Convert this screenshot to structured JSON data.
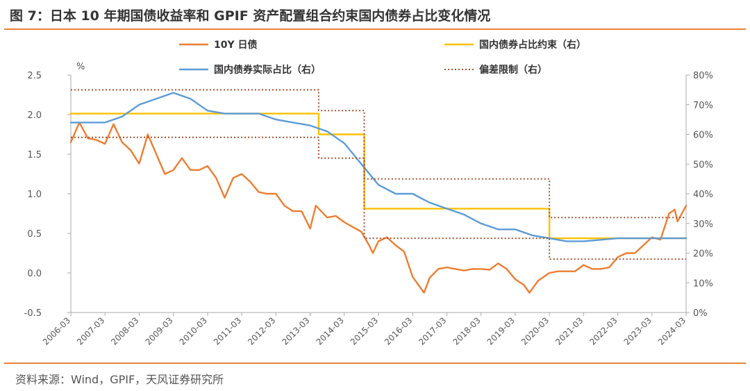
{
  "title": "图 7：日本 10 年期国债收益率和 GPIF 资产配置组合约束国内债券占比变化情况",
  "source": "资料来源：Wind，GPIF，天风证券研究所",
  "colors": {
    "rule": "#e8823a",
    "jgb": "#ed7d31",
    "constraint": "#ffc000",
    "actual": "#5b9bd5",
    "deviation": "#a0522d"
  },
  "chart_data": {
    "type": "line",
    "y_left_unit": "%",
    "y_left": {
      "min": -0.5,
      "max": 2.5,
      "ticks": [
        "-0.5",
        "0.0",
        "0.5",
        "1.0",
        "1.5",
        "2.0",
        "2.5"
      ]
    },
    "y_right": {
      "min": 0,
      "max": 80,
      "ticks": [
        "0%",
        "10%",
        "20%",
        "30%",
        "40%",
        "50%",
        "60%",
        "70%",
        "80%"
      ]
    },
    "x_range": [
      "2006-03",
      "2024-03"
    ],
    "x_ticks": [
      "2006-03",
      "2007-03",
      "2008-03",
      "2009-03",
      "2010-03",
      "2011-03",
      "2012-03",
      "2013-03",
      "2014-03",
      "2015-03",
      "2016-03",
      "2017-03",
      "2018-03",
      "2019-03",
      "2020-03",
      "2021-03",
      "2022-03",
      "2023-03",
      "2024-03"
    ],
    "legend": "top",
    "series": [
      {
        "name": "10Y 日债",
        "axis": "left",
        "style": "solid",
        "color": "#ed7d31",
        "points": [
          [
            "2006-03",
            1.65
          ],
          [
            "2006-06",
            1.9
          ],
          [
            "2006-09",
            1.7
          ],
          [
            "2006-12",
            1.68
          ],
          [
            "2007-03",
            1.63
          ],
          [
            "2007-06",
            1.88
          ],
          [
            "2007-09",
            1.65
          ],
          [
            "2007-12",
            1.55
          ],
          [
            "2008-03",
            1.38
          ],
          [
            "2008-06",
            1.75
          ],
          [
            "2008-09",
            1.5
          ],
          [
            "2008-12",
            1.25
          ],
          [
            "2009-03",
            1.3
          ],
          [
            "2009-06",
            1.45
          ],
          [
            "2009-09",
            1.3
          ],
          [
            "2009-12",
            1.3
          ],
          [
            "2010-03",
            1.35
          ],
          [
            "2010-06",
            1.2
          ],
          [
            "2010-09",
            0.95
          ],
          [
            "2010-12",
            1.2
          ],
          [
            "2011-03",
            1.25
          ],
          [
            "2011-06",
            1.15
          ],
          [
            "2011-09",
            1.02
          ],
          [
            "2011-12",
            1.0
          ],
          [
            "2012-03",
            1.0
          ],
          [
            "2012-06",
            0.85
          ],
          [
            "2012-09",
            0.78
          ],
          [
            "2012-12",
            0.78
          ],
          [
            "2013-03",
            0.56
          ],
          [
            "2013-05",
            0.85
          ],
          [
            "2013-09",
            0.7
          ],
          [
            "2013-12",
            0.72
          ],
          [
            "2014-03",
            0.64
          ],
          [
            "2014-06",
            0.58
          ],
          [
            "2014-09",
            0.52
          ],
          [
            "2014-12",
            0.33
          ],
          [
            "2015-01",
            0.25
          ],
          [
            "2015-03",
            0.4
          ],
          [
            "2015-06",
            0.45
          ],
          [
            "2015-09",
            0.35
          ],
          [
            "2015-12",
            0.27
          ],
          [
            "2016-03",
            -0.05
          ],
          [
            "2016-07",
            -0.25
          ],
          [
            "2016-09",
            -0.06
          ],
          [
            "2016-12",
            0.05
          ],
          [
            "2017-03",
            0.07
          ],
          [
            "2017-06",
            0.05
          ],
          [
            "2017-09",
            0.03
          ],
          [
            "2017-12",
            0.05
          ],
          [
            "2018-03",
            0.05
          ],
          [
            "2018-06",
            0.04
          ],
          [
            "2018-09",
            0.12
          ],
          [
            "2018-12",
            0.05
          ],
          [
            "2019-03",
            -0.08
          ],
          [
            "2019-06",
            -0.15
          ],
          [
            "2019-08",
            -0.25
          ],
          [
            "2019-11",
            -0.1
          ],
          [
            "2020-03",
            0.0
          ],
          [
            "2020-06",
            0.02
          ],
          [
            "2020-09",
            0.02
          ],
          [
            "2020-12",
            0.02
          ],
          [
            "2021-03",
            0.1
          ],
          [
            "2021-06",
            0.05
          ],
          [
            "2021-09",
            0.05
          ],
          [
            "2021-12",
            0.07
          ],
          [
            "2022-03",
            0.2
          ],
          [
            "2022-06",
            0.25
          ],
          [
            "2022-09",
            0.25
          ],
          [
            "2022-12",
            0.35
          ],
          [
            "2023-03",
            0.45
          ],
          [
            "2023-06",
            0.42
          ],
          [
            "2023-09",
            0.75
          ],
          [
            "2023-11",
            0.8
          ],
          [
            "2023-12",
            0.65
          ],
          [
            "2024-03",
            0.85
          ]
        ]
      },
      {
        "name": "国内债券占比约束（右）",
        "axis": "right",
        "style": "step",
        "color": "#ffc000",
        "points": [
          [
            "2006-03",
            67
          ],
          [
            "2013-06",
            67
          ],
          [
            "2013-06",
            60
          ],
          [
            "2014-10",
            60
          ],
          [
            "2014-10",
            35
          ],
          [
            "2020-03",
            35
          ],
          [
            "2020-03",
            25
          ],
          [
            "2024-03",
            25
          ]
        ]
      },
      {
        "name": "国内债券实际占比（右）",
        "axis": "right",
        "style": "solid",
        "color": "#5b9bd5",
        "points": [
          [
            "2006-03",
            64
          ],
          [
            "2007-03",
            64
          ],
          [
            "2007-09",
            66
          ],
          [
            "2008-03",
            70
          ],
          [
            "2009-03",
            74
          ],
          [
            "2009-09",
            72
          ],
          [
            "2010-03",
            68
          ],
          [
            "2010-09",
            67
          ],
          [
            "2011-03",
            67
          ],
          [
            "2011-09",
            67
          ],
          [
            "2012-03",
            65
          ],
          [
            "2012-09",
            64
          ],
          [
            "2013-03",
            63
          ],
          [
            "2013-09",
            61
          ],
          [
            "2014-03",
            57
          ],
          [
            "2014-09",
            50
          ],
          [
            "2015-03",
            43
          ],
          [
            "2015-09",
            40
          ],
          [
            "2016-03",
            40
          ],
          [
            "2016-09",
            37
          ],
          [
            "2017-03",
            35
          ],
          [
            "2017-09",
            33
          ],
          [
            "2018-03",
            30
          ],
          [
            "2018-09",
            28
          ],
          [
            "2019-03",
            28
          ],
          [
            "2019-09",
            26
          ],
          [
            "2020-03",
            25
          ],
          [
            "2020-09",
            24
          ],
          [
            "2021-03",
            24
          ],
          [
            "2021-09",
            24.5
          ],
          [
            "2022-03",
            25
          ],
          [
            "2022-09",
            25
          ],
          [
            "2023-03",
            25
          ],
          [
            "2024-03",
            25
          ]
        ]
      },
      {
        "name": "偏差限制（右）",
        "axis": "right",
        "style": "dotted",
        "color": "#a0522d",
        "points": [
          [
            "2006-03",
            75
          ],
          [
            "2013-06",
            75
          ],
          [
            "2013-06",
            68
          ],
          [
            "2014-10",
            68
          ],
          [
            "2014-10",
            45
          ],
          [
            "2020-03",
            45
          ],
          [
            "2020-03",
            32
          ],
          [
            "2024-03",
            32
          ]
        ]
      },
      {
        "name": "",
        "axis": "right",
        "style": "dotted",
        "color": "#a0522d",
        "points": [
          [
            "2006-03",
            59
          ],
          [
            "2013-06",
            59
          ],
          [
            "2013-06",
            52
          ],
          [
            "2014-10",
            52
          ],
          [
            "2014-10",
            25
          ],
          [
            "2020-03",
            25
          ],
          [
            "2020-03",
            18
          ],
          [
            "2024-03",
            18
          ]
        ]
      }
    ]
  }
}
